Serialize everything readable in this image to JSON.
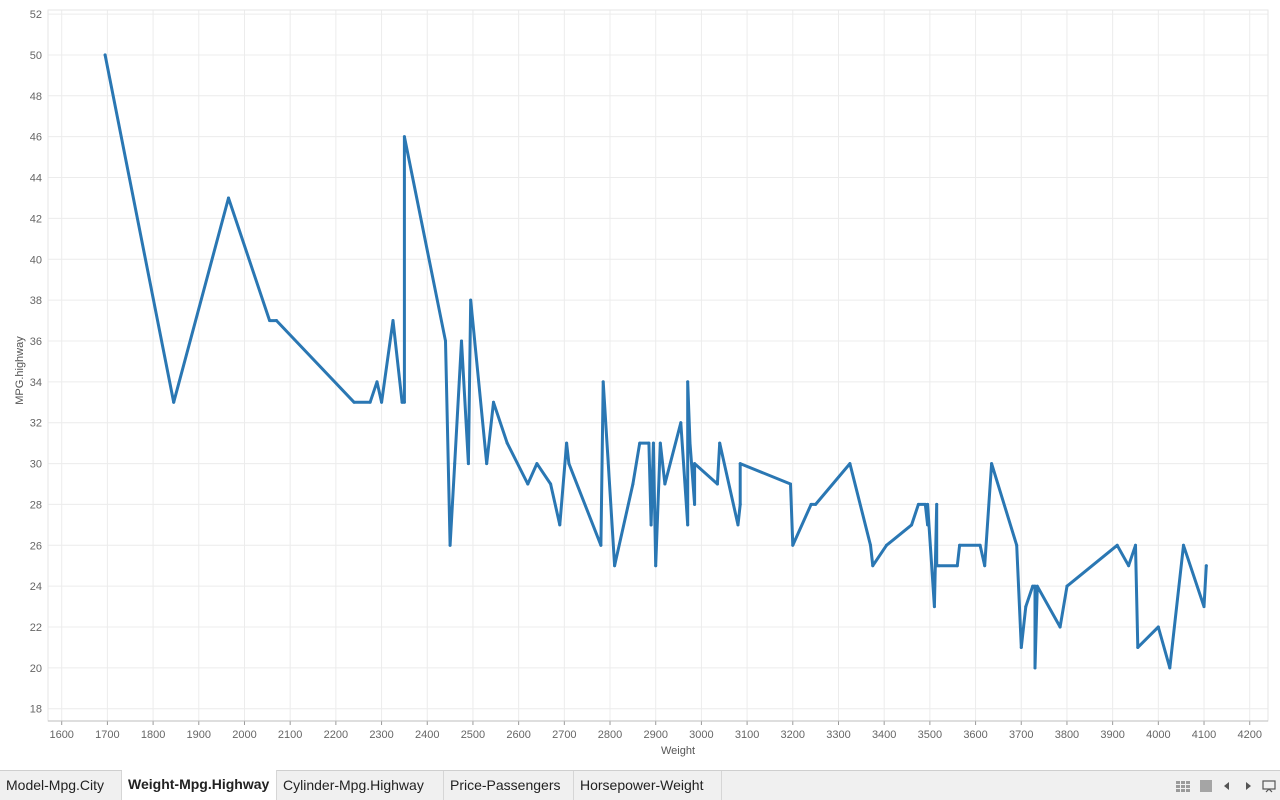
{
  "tabs": [
    {
      "label": "Model-Mpg.City",
      "active": false
    },
    {
      "label": "Weight-Mpg.Highway",
      "active": true
    },
    {
      "label": "Cylinder-Mpg.Highway",
      "active": false
    },
    {
      "label": "Price-Passengers",
      "active": false
    },
    {
      "label": "Horsepower-Weight",
      "active": false
    }
  ],
  "toolbar_icons": [
    "grid-view-icon",
    "single-view-icon",
    "prev-arrow-icon",
    "next-arrow-icon",
    "present-icon"
  ],
  "chart_data": {
    "type": "line",
    "xlabel": "Weight",
    "ylabel": "MPG.highway",
    "xlim": [
      1570,
      4240
    ],
    "ylim": [
      17.4,
      52.2
    ],
    "xticks": [
      1600,
      1700,
      1800,
      1900,
      2000,
      2100,
      2200,
      2300,
      2400,
      2500,
      2600,
      2700,
      2800,
      2900,
      3000,
      3100,
      3200,
      3300,
      3400,
      3500,
      3600,
      3700,
      3800,
      3900,
      4000,
      4100,
      4200
    ],
    "yticks": [
      18,
      20,
      22,
      24,
      26,
      28,
      30,
      32,
      34,
      36,
      38,
      40,
      42,
      44,
      46,
      48,
      50,
      52
    ],
    "grid": true,
    "color": "#2a77b3",
    "series": [
      {
        "x": [
          1695,
          1845,
          1965,
          2055,
          2070,
          2240,
          2275,
          2290,
          2300,
          2325,
          2345,
          2350,
          2350,
          2440,
          2450,
          2460,
          2475,
          2490,
          2495,
          2530,
          2545,
          2575,
          2620,
          2640,
          2670,
          2690,
          2705,
          2710,
          2780,
          2785,
          2810,
          2850,
          2865,
          2885,
          2890,
          2895,
          2900,
          2910,
          2920,
          2955,
          2970,
          2970,
          2975,
          2985,
          2985,
          3035,
          3040,
          3080,
          3085,
          3085,
          3195,
          3200,
          3240,
          3250,
          3325,
          3370,
          3375,
          3405,
          3460,
          3475,
          3490,
          3495,
          3495,
          3510,
          3515,
          3515,
          3520,
          3560,
          3565,
          3610,
          3620,
          3635,
          3690,
          3700,
          3710,
          3725,
          3730,
          3730,
          3735,
          3785,
          3800,
          3910,
          3935,
          3950,
          3955,
          4000,
          4025,
          4055,
          4100,
          4105
        ],
        "y": [
          50,
          33,
          43,
          37,
          37,
          33,
          33,
          34,
          33,
          37,
          33,
          33,
          46,
          36,
          26,
          30,
          36,
          30,
          38,
          30,
          33,
          31,
          29,
          30,
          29,
          27,
          31,
          30,
          26,
          34,
          25,
          29,
          31,
          31,
          27,
          31,
          25,
          31,
          29,
          32,
          27,
          34,
          31,
          28,
          30,
          29,
          31,
          27,
          28,
          30,
          29,
          26,
          28,
          28,
          30,
          26,
          25,
          26,
          27,
          28,
          28,
          27,
          28,
          23,
          28,
          25,
          25,
          25,
          26,
          26,
          25,
          30,
          26,
          21,
          23,
          24,
          24,
          20,
          24,
          22,
          24,
          26,
          25,
          26,
          21,
          22,
          20,
          26,
          23,
          25
        ]
      }
    ]
  }
}
